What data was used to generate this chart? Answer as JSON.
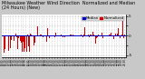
{
  "title": "Milwaukee Weather Wind Direction  Normalized and Median\n(24 Hours) (New)",
  "title_fontsize": 3.5,
  "bg_color": "#c8c8c8",
  "plot_bg_color": "#ffffff",
  "bar_color": "#cc0000",
  "median_color": "#0000cc",
  "median_value": 0.0,
  "ylim": [
    -5.5,
    5.5
  ],
  "yticks": [
    -5,
    -2.5,
    0,
    2.5,
    5
  ],
  "ytick_labels": [
    "-5",
    "",
    "0",
    "",
    "5"
  ],
  "ytick_fontsize": 3.0,
  "xtick_fontsize": 2.0,
  "legend_fontsize": 2.8,
  "grid_color": "#aaaaaa",
  "n_points": 288,
  "seed": 42,
  "bar_width": 0.85,
  "legend_labels": [
    "Median",
    "Normalized"
  ],
  "legend_colors": [
    "#0000cc",
    "#cc0000"
  ]
}
